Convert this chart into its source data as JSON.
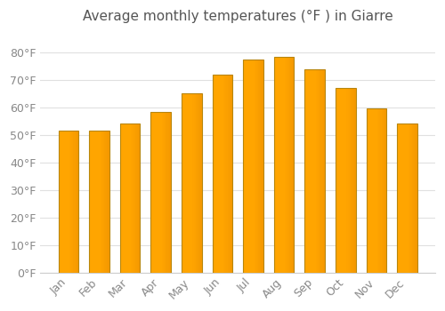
{
  "title": "Average monthly temperatures (°F ) in Giarre",
  "months": [
    "Jan",
    "Feb",
    "Mar",
    "Apr",
    "May",
    "Jun",
    "Jul",
    "Aug",
    "Sep",
    "Oct",
    "Nov",
    "Dec"
  ],
  "values": [
    51.5,
    51.5,
    54,
    58.5,
    65,
    72,
    77.5,
    78.5,
    74,
    67,
    59.5,
    54
  ],
  "bar_color_face": "#FFA500",
  "bar_color_edge": "#B8860B",
  "ylim": [
    0,
    88
  ],
  "yticks": [
    0,
    10,
    20,
    30,
    40,
    50,
    60,
    70,
    80
  ],
  "ytick_labels": [
    "0°F",
    "10°F",
    "20°F",
    "30°F",
    "40°F",
    "50°F",
    "60°F",
    "70°F",
    "80°F"
  ],
  "background_color": "#FFFFFF",
  "grid_color": "#E0E0E0",
  "title_fontsize": 11,
  "tick_fontsize": 9,
  "title_color": "#555555",
  "tick_color": "#888888"
}
